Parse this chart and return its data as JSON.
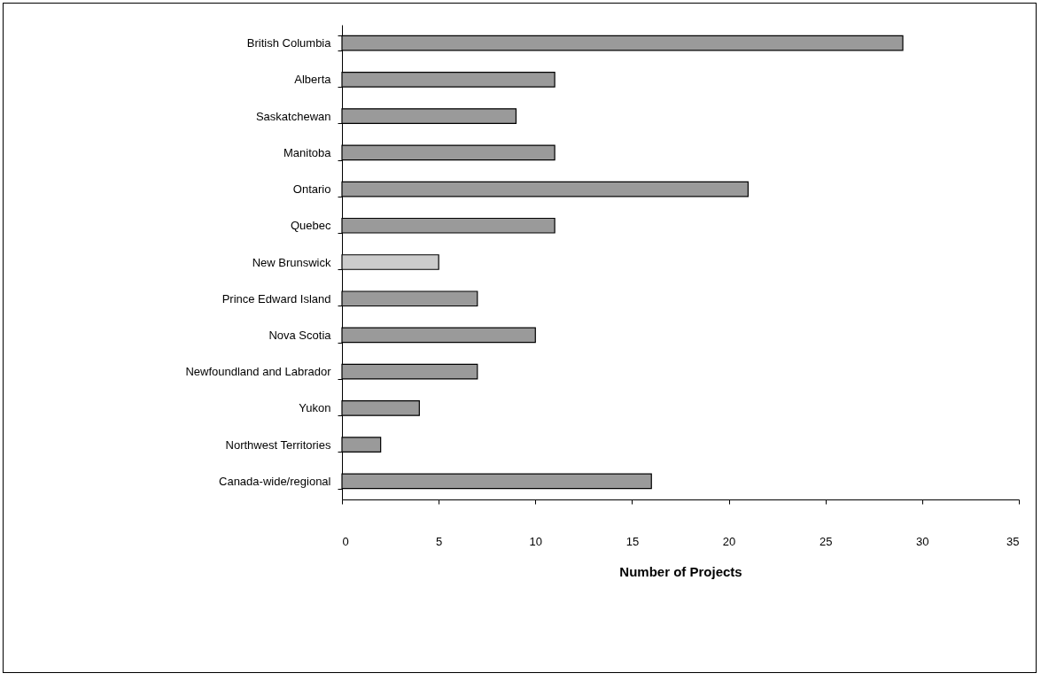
{
  "chart_data": {
    "type": "bar",
    "orientation": "horizontal",
    "xlabel": "Number of Projects",
    "categories": [
      "British Columbia",
      "Alberta",
      "Saskatchewan",
      "Manitoba",
      "Ontario",
      "Quebec",
      "New Brunswick",
      "Prince Edward Island",
      "Nova Scotia",
      "Newfoundland and Labrador",
      "Yukon",
      "Northwest Territories",
      "Canada-wide/regional"
    ],
    "values": [
      29,
      11,
      9,
      11,
      21,
      11,
      5,
      7,
      10,
      7,
      4,
      2,
      16
    ],
    "colors": [
      "#9a9a9a",
      "#9a9a9a",
      "#9a9a9a",
      "#9a9a9a",
      "#9a9a9a",
      "#9a9a9a",
      "#cccccc",
      "#9a9a9a",
      "#9a9a9a",
      "#9a9a9a",
      "#9a9a9a",
      "#9a9a9a",
      "#9a9a9a"
    ],
    "xlim": [
      0,
      35
    ],
    "xticks": [
      0,
      5,
      10,
      15,
      20,
      25,
      30,
      35
    ],
    "grid": false
  }
}
